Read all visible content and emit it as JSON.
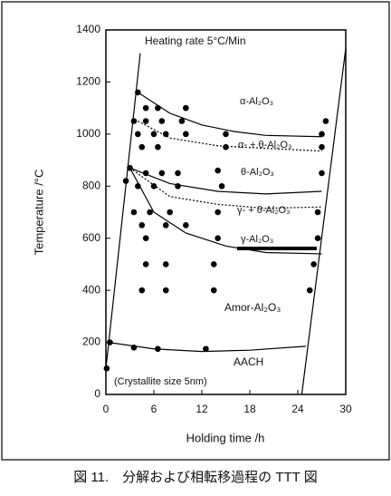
{
  "chart_data": {
    "type": "scatter",
    "xlabel": "Holding time   /h",
    "ylabel": "Temperature   /°C",
    "caption": "図 11.　分解および相転移過程の TTT 図",
    "annotations": [
      "Heating rate  5°C/Min",
      "α-Al₂O₃",
      "α- + θ-Al₂O₃",
      "θ-Al₂O₃",
      "γ- + θ-Al₂O₃",
      "γ-Al₂O₃",
      "Amor-Al₂O₃",
      "AACH",
      "(Crystallite size  5nm)"
    ],
    "xlim": [
      0,
      30
    ],
    "ylim": [
      0,
      1400
    ],
    "xticks": [
      0,
      6,
      12,
      18,
      24,
      30
    ],
    "yticks": [
      0,
      200,
      400,
      600,
      800,
      1000,
      1200,
      1400
    ],
    "color": "#000000",
    "series": [
      {
        "color": "#000000",
        "x": [
          0.1,
          0.5,
          3.5,
          6.5,
          12.5,
          4,
          5,
          6.5,
          10,
          3.5,
          5,
          7,
          9.5,
          27.5,
          4,
          6,
          7.5,
          10,
          15,
          27,
          4.5,
          6.5,
          15,
          27,
          3,
          5,
          7,
          9,
          14,
          27,
          2.5,
          4,
          6,
          9,
          14.5,
          3.5,
          5.5,
          8,
          14,
          26.5,
          4.5,
          7.5,
          10,
          5,
          14,
          26.5,
          5,
          7.5,
          13.5,
          26,
          4.5,
          7.5,
          13.5,
          25.5
        ],
        "values": [
          100,
          200,
          180,
          175,
          175,
          1160,
          1100,
          1100,
          1100,
          1050,
          1050,
          1050,
          1050,
          1050,
          1000,
          1000,
          1000,
          1000,
          1000,
          1000,
          950,
          950,
          950,
          950,
          870,
          850,
          850,
          850,
          860,
          850,
          820,
          800,
          800,
          800,
          800,
          700,
          700,
          700,
          700,
          700,
          650,
          650,
          650,
          600,
          600,
          600,
          500,
          500,
          500,
          500,
          400,
          400,
          400,
          400
        ]
      }
    ],
    "lines": [
      {
        "style": "solid",
        "x": [
          0,
          4.3
        ],
        "values": [
          100,
          1310
        ]
      },
      {
        "style": "solid",
        "x": [
          24.5,
          30
        ],
        "values": [
          0,
          1330
        ]
      },
      {
        "style": "solid",
        "x": [
          4,
          8,
          12,
          16,
          20,
          27
        ],
        "values": [
          1160,
          1080,
          1035,
          1010,
          995,
          990
        ]
      },
      {
        "style": "dashed",
        "x": [
          4,
          8,
          14,
          20,
          27
        ],
        "values": [
          1050,
          985,
          955,
          945,
          935
        ]
      },
      {
        "style": "solid",
        "x": [
          3,
          8,
          14,
          20,
          27
        ],
        "values": [
          870,
          810,
          780,
          770,
          780
        ]
      },
      {
        "style": "dashed",
        "x": [
          3,
          8,
          14,
          20,
          27
        ],
        "values": [
          870,
          760,
          730,
          715,
          720
        ]
      },
      {
        "style": "solid",
        "x": [
          3,
          6,
          10,
          15,
          20,
          27
        ],
        "values": [
          870,
          700,
          620,
          570,
          545,
          540
        ]
      },
      {
        "style": "solid",
        "x": [
          0.3,
          6,
          12,
          18,
          25
        ],
        "values": [
          200,
          175,
          165,
          170,
          185
        ]
      }
    ]
  }
}
